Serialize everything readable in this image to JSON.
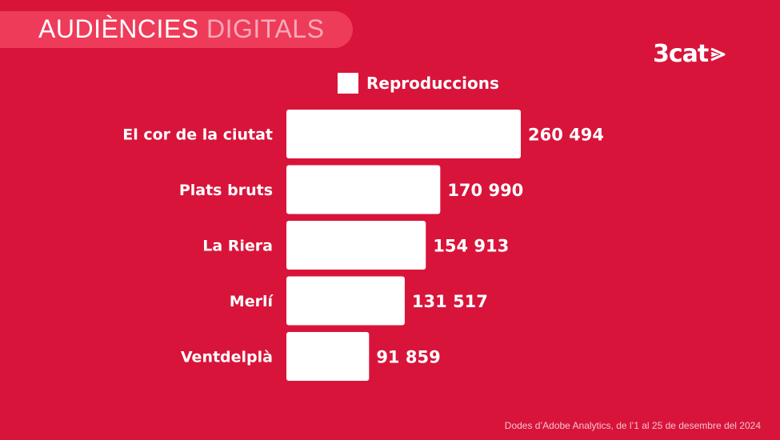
{
  "header": {
    "title_main": "AUDIÈNCIES",
    "title_accent": "DIGITALS",
    "logo_text": "3cat"
  },
  "footnote": "Dodes d’Adobe Analytics, de l’1 al 25 de desembre del 2024",
  "colors": {
    "background": "#d8143a",
    "title_band": "#ef3b5a",
    "bar": "#ffffff",
    "text": "#ffffff"
  },
  "chart_data": {
    "type": "bar",
    "orientation": "horizontal",
    "legend_position": "top",
    "grid": false,
    "series": [
      {
        "name": "Reproduccions",
        "values": [
          260494,
          170990,
          154913,
          131517,
          91859
        ],
        "value_labels": [
          "260 494",
          "170 990",
          "154 913",
          "131 517",
          "91 859"
        ]
      }
    ],
    "categories": [
      "El cor de la ciutat",
      "Plats bruts",
      "La Riera",
      "Merlí",
      "Ventdelplà"
    ],
    "xlim": [
      0,
      260494
    ]
  }
}
